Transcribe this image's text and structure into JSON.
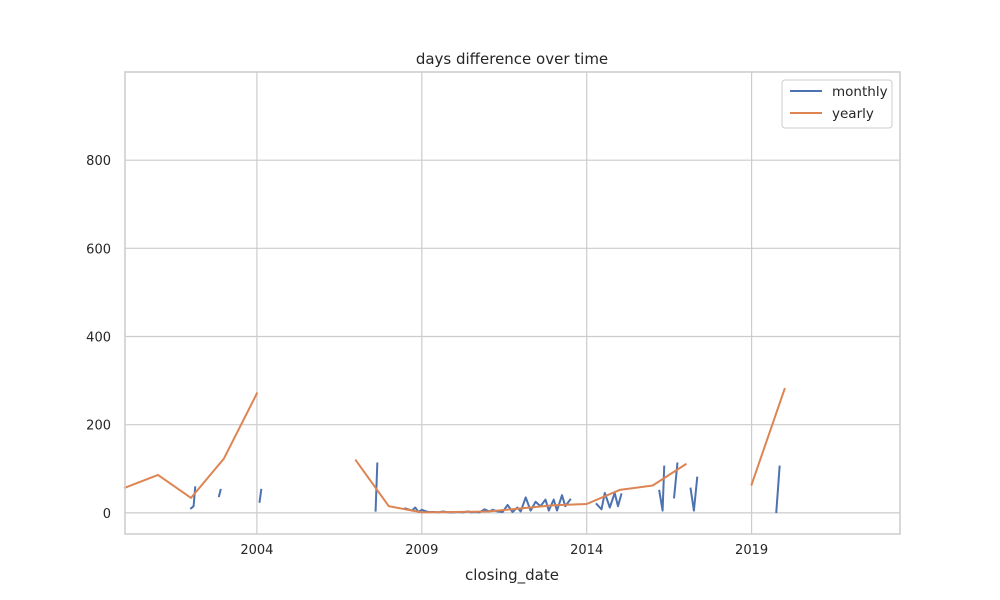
{
  "chart_data": {
    "type": "line",
    "title": "days difference over time",
    "xlabel": "closing_date",
    "ylabel": "",
    "xlim": [
      2000.0,
      2023.5
    ],
    "ylim": [
      -48,
      1000
    ],
    "xticks": [
      {
        "value": 2004,
        "label": "2004"
      },
      {
        "value": 2009,
        "label": "2009"
      },
      {
        "value": 2014,
        "label": "2014"
      },
      {
        "value": 2019,
        "label": "2019"
      }
    ],
    "yticks": [
      {
        "value": 0,
        "label": "0"
      },
      {
        "value": 200,
        "label": "200"
      },
      {
        "value": 400,
        "label": "400"
      },
      {
        "value": 600,
        "label": "600"
      },
      {
        "value": 800,
        "label": "800"
      }
    ],
    "grid": true,
    "legend_position": "top-right",
    "series": [
      {
        "name": "monthly",
        "color": "#4c72b0",
        "segments": [
          [
            [
              2002.0,
              10
            ],
            [
              2002.08,
              15
            ],
            [
              2002.13,
              58
            ]
          ],
          [
            [
              2002.85,
              38
            ],
            [
              2002.9,
              52
            ]
          ],
          [
            [
              2004.08,
              25
            ],
            [
              2004.13,
              52
            ]
          ],
          [
            [
              2007.6,
              5
            ],
            [
              2007.65,
              112
            ]
          ],
          [
            [
              2008.5,
              10
            ],
            [
              2008.7,
              5
            ],
            [
              2008.8,
              12
            ],
            [
              2008.9,
              2
            ],
            [
              2009.0,
              7
            ],
            [
              2009.1,
              4
            ],
            [
              2009.2,
              2
            ],
            [
              2009.35,
              2
            ],
            [
              2009.5,
              1
            ],
            [
              2009.65,
              3
            ],
            [
              2009.8,
              1
            ],
            [
              2009.95,
              1
            ],
            [
              2010.1,
              2
            ],
            [
              2010.25,
              1
            ],
            [
              2010.4,
              3
            ],
            [
              2010.5,
              1
            ],
            [
              2010.6,
              2
            ],
            [
              2010.75,
              1
            ],
            [
              2010.9,
              8
            ],
            [
              2011.05,
              3
            ],
            [
              2011.15,
              7
            ],
            [
              2011.3,
              3
            ],
            [
              2011.45,
              2
            ],
            [
              2011.6,
              18
            ],
            [
              2011.75,
              2
            ],
            [
              2011.9,
              12
            ],
            [
              2012.0,
              3
            ],
            [
              2012.15,
              35
            ],
            [
              2012.3,
              5
            ],
            [
              2012.45,
              25
            ],
            [
              2012.6,
              15
            ],
            [
              2012.75,
              30
            ],
            [
              2012.85,
              5
            ],
            [
              2013.0,
              30
            ],
            [
              2013.1,
              5
            ],
            [
              2013.25,
              40
            ],
            [
              2013.35,
              15
            ],
            [
              2013.5,
              30
            ]
          ],
          [
            [
              2014.3,
              20
            ],
            [
              2014.45,
              8
            ],
            [
              2014.55,
              45
            ],
            [
              2014.7,
              12
            ],
            [
              2014.85,
              45
            ],
            [
              2014.95,
              15
            ],
            [
              2015.05,
              42
            ]
          ],
          [
            [
              2016.2,
              50
            ],
            [
              2016.3,
              5
            ],
            [
              2016.35,
              105
            ]
          ],
          [
            [
              2016.65,
              35
            ],
            [
              2016.75,
              112
            ]
          ],
          [
            [
              2017.15,
              55
            ],
            [
              2017.25,
              5
            ],
            [
              2017.35,
              80
            ]
          ],
          [
            [
              2019.75,
              2
            ],
            [
              2019.85,
              105
            ]
          ]
        ]
      },
      {
        "name": "yearly",
        "color": "#dd8452",
        "segments": [
          [
            [
              2000.0,
              57
            ],
            [
              2001.0,
              86
            ],
            [
              2002.0,
              34
            ],
            [
              2003.0,
              123
            ],
            [
              2004.0,
              271
            ]
          ],
          [
            [
              2007.0,
              119
            ],
            [
              2008.0,
              15
            ],
            [
              2009.0,
              1
            ],
            [
              2010.0,
              2
            ],
            [
              2011.0,
              3
            ],
            [
              2012.0,
              10
            ],
            [
              2013.0,
              17
            ],
            [
              2014.0,
              20
            ],
            [
              2015.0,
              52
            ],
            [
              2016.0,
              62
            ],
            [
              2017.0,
              110
            ]
          ],
          [
            [
              2019.0,
              64
            ],
            [
              2020.0,
              281
            ]
          ]
        ]
      }
    ]
  }
}
